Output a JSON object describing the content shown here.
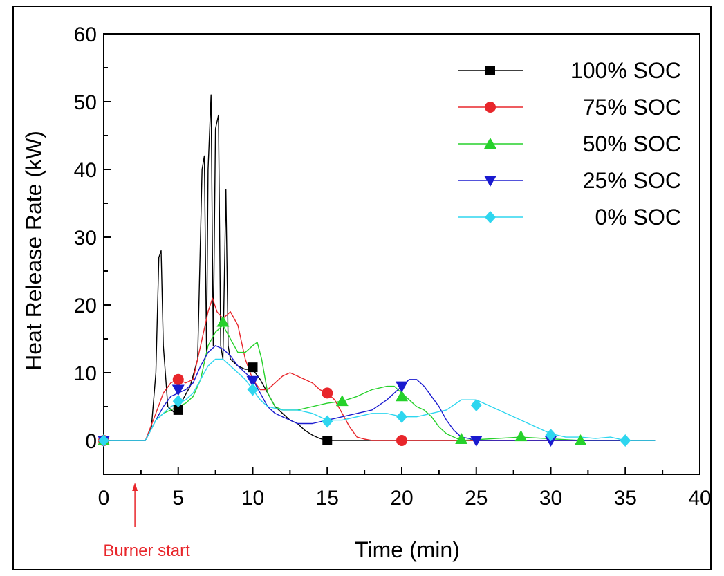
{
  "chart_data": {
    "type": "line",
    "xlabel": "Time (min)",
    "ylabel": "Heat Release Rate (kW)",
    "xlim": [
      0,
      40
    ],
    "ylim": [
      -5,
      60
    ],
    "xticks": [
      "0",
      "5",
      "10",
      "15",
      "20",
      "25",
      "30",
      "35",
      "40"
    ],
    "yticks": [
      "0",
      "10",
      "20",
      "30",
      "40",
      "50",
      "60"
    ],
    "legend_position": "top-right",
    "annotation": {
      "text": "Burner start",
      "x": 2,
      "color": "#e8262b"
    },
    "series": [
      {
        "name": "100% SOC",
        "color": "#000000",
        "marker": "square",
        "x": [
          0,
          2.8,
          3.2,
          3.5,
          3.7,
          3.85,
          4.0,
          4.3,
          4.8,
          5.3,
          5.8,
          6.3,
          6.6,
          6.75,
          6.9,
          7.0,
          7.2,
          7.35,
          7.5,
          7.7,
          7.85,
          8.0,
          8.2,
          8.35,
          8.5,
          9.0,
          9.5,
          10.0,
          10.5,
          11.0,
          11.5,
          12.0,
          12.5,
          13.0,
          13.5,
          14.0,
          14.5,
          15.0,
          17.0,
          37.0
        ],
        "y": [
          0,
          0,
          2,
          10,
          27,
          28,
          14,
          5,
          4,
          6,
          8,
          12,
          40,
          42,
          13,
          40,
          51,
          14,
          46,
          48,
          14,
          12,
          37,
          14,
          12,
          11,
          10.5,
          10.5,
          9,
          7,
          5,
          4,
          3,
          2.5,
          1.5,
          0.8,
          0.3,
          0,
          0,
          0
        ],
        "markers_x": [
          0,
          5,
          10,
          15
        ],
        "markers_y": [
          0,
          4.5,
          10.8,
          0
        ]
      },
      {
        "name": "75% SOC",
        "color": "#e8262b",
        "marker": "circle",
        "x": [
          0,
          2.8,
          3.5,
          4.0,
          4.5,
          5.0,
          5.5,
          6.0,
          6.5,
          7.0,
          7.3,
          7.6,
          8.0,
          8.5,
          9.0,
          9.5,
          10.0,
          10.5,
          11.0,
          11.5,
          12.0,
          12.5,
          13.0,
          13.5,
          14.0,
          14.5,
          15.0,
          15.5,
          16.0,
          16.5,
          17.0,
          17.5,
          18.0,
          37.0
        ],
        "y": [
          0,
          0,
          4,
          7,
          8.5,
          9,
          8.5,
          9,
          14,
          19,
          21,
          19,
          18,
          19,
          17,
          12,
          9,
          7.5,
          7.5,
          8.5,
          9.5,
          10,
          9.5,
          9,
          8.5,
          7.5,
          7,
          6,
          4,
          2,
          0.5,
          0.2,
          0,
          0
        ],
        "markers_x": [
          0,
          5,
          15,
          20
        ],
        "markers_y": [
          0,
          9,
          7,
          0
        ]
      },
      {
        "name": "50% SOC",
        "color": "#26d12b",
        "marker": "triangle-up",
        "x": [
          0,
          2.8,
          3.5,
          4.0,
          4.5,
          5.0,
          5.5,
          6.0,
          6.5,
          7.0,
          7.5,
          8.0,
          8.5,
          9.0,
          9.5,
          10.0,
          10.3,
          10.6,
          11.0,
          11.5,
          12.0,
          13.0,
          14.0,
          15.0,
          16.0,
          17.0,
          18.0,
          19.0,
          19.5,
          20.0,
          20.5,
          21.0,
          21.5,
          22.0,
          22.5,
          23.0,
          23.5,
          24.0,
          28.0,
          32.0,
          37.0
        ],
        "y": [
          0,
          0,
          3,
          4,
          4.5,
          5,
          5.5,
          6.5,
          9,
          14,
          16,
          17,
          15,
          13,
          13,
          14,
          14.5,
          12,
          7,
          5,
          4.5,
          4.5,
          5,
          5.5,
          5.8,
          6.5,
          7.5,
          8,
          8,
          7,
          6,
          5,
          4.5,
          3.5,
          2,
          1,
          0.5,
          0,
          0.5,
          0,
          0
        ],
        "markers_x": [
          0,
          8,
          16,
          20,
          24,
          28,
          32
        ],
        "markers_y": [
          0,
          17.5,
          5.8,
          6.5,
          0.2,
          0.6,
          0
        ]
      },
      {
        "name": "25% SOC",
        "color": "#1a1acf",
        "marker": "triangle-down",
        "x": [
          0,
          2.8,
          3.5,
          4.0,
          4.5,
          5.0,
          5.5,
          6.0,
          6.5,
          7.0,
          7.5,
          8.0,
          8.5,
          9.0,
          9.5,
          10.0,
          10.5,
          11.0,
          11.5,
          12.0,
          13.0,
          14.0,
          15.0,
          16.0,
          17.0,
          18.0,
          19.0,
          19.5,
          20.0,
          20.5,
          21.0,
          21.5,
          22.0,
          22.5,
          23.0,
          23.5,
          24.0,
          24.5,
          25.0,
          30.0,
          37.0
        ],
        "y": [
          0,
          0,
          3,
          5,
          6.5,
          7,
          7.5,
          8.5,
          11,
          13,
          14,
          13.5,
          12.5,
          11,
          10,
          9,
          7,
          5,
          4,
          3.5,
          2.5,
          2.5,
          3,
          3.5,
          4,
          4.5,
          6,
          7,
          8,
          9,
          9,
          8,
          6.5,
          5,
          3,
          1.5,
          0.5,
          0.3,
          0,
          0,
          0
        ],
        "markers_x": [
          0,
          5,
          10,
          20,
          25,
          30
        ],
        "markers_y": [
          0,
          7.5,
          8.8,
          8,
          0,
          0
        ]
      },
      {
        "name": "0% SOC",
        "color": "#2ed6ef",
        "marker": "diamond",
        "x": [
          0,
          2.8,
          3.5,
          4.0,
          4.5,
          5.0,
          5.5,
          6.0,
          6.5,
          7.0,
          7.5,
          8.0,
          8.5,
          9.0,
          9.5,
          10.0,
          10.5,
          11.0,
          12.0,
          13.0,
          14.0,
          15.0,
          16.0,
          17.0,
          18.0,
          19.0,
          20.0,
          21.0,
          22.0,
          23.0,
          24.0,
          25.0,
          26.0,
          27.0,
          28.0,
          29.0,
          30.0,
          31.0,
          32.0,
          33.0,
          34.0,
          35.0,
          37.0
        ],
        "y": [
          0,
          0,
          3,
          4,
          5,
          5.5,
          6,
          7,
          9,
          11,
          12,
          12,
          11,
          10,
          9,
          7.5,
          6,
          5,
          4.5,
          4.5,
          4,
          3,
          3,
          3.5,
          4,
          4,
          3.5,
          3.5,
          4,
          4.5,
          6,
          6,
          5,
          4,
          3,
          2,
          1,
          0.5,
          0.5,
          0.3,
          0.5,
          0,
          0
        ],
        "markers_x": [
          0,
          5,
          10,
          15,
          20,
          25,
          30,
          35
        ],
        "markers_y": [
          0,
          5.8,
          7.5,
          2.8,
          3.5,
          5.2,
          0.8,
          0
        ]
      }
    ]
  }
}
